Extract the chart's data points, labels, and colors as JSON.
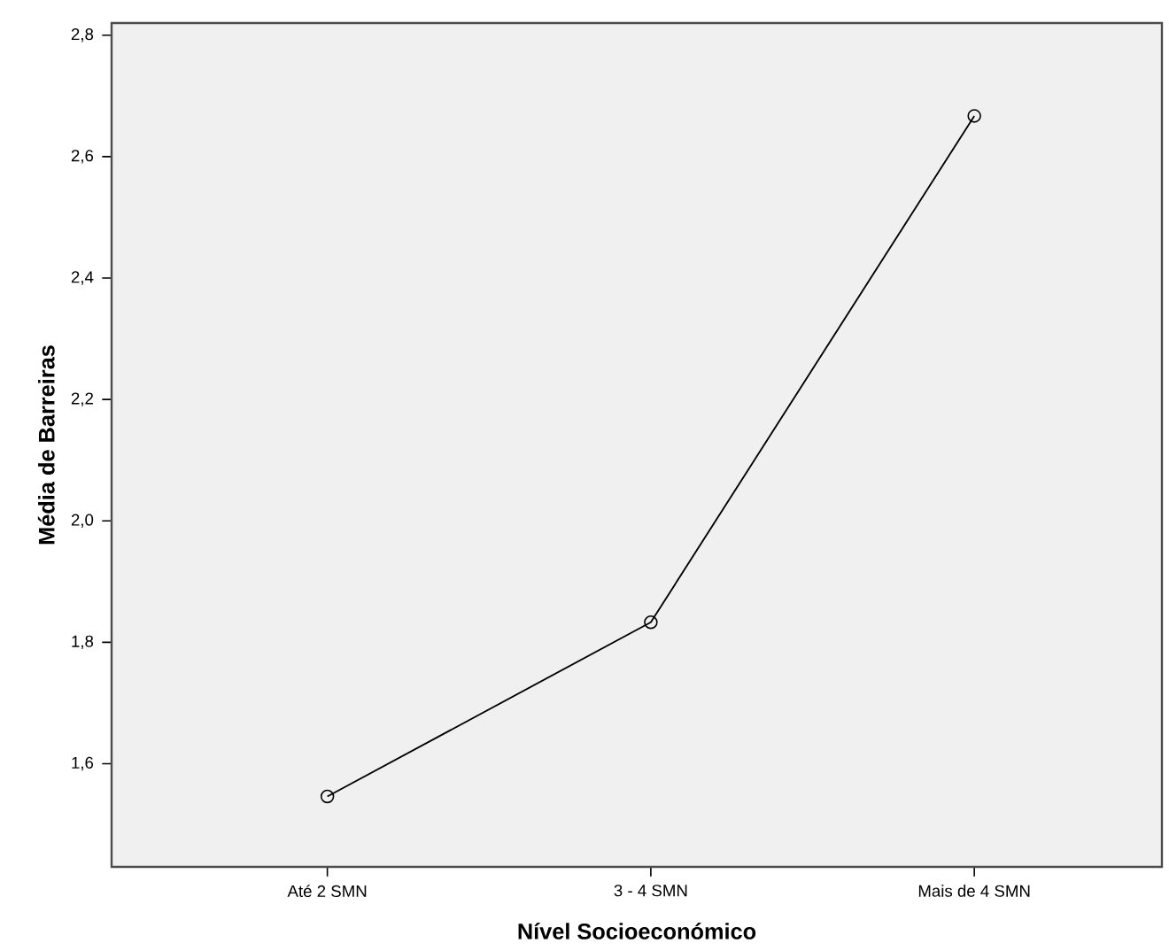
{
  "chart_data": {
    "type": "line",
    "xlabel": "Nível Socioeconómico",
    "ylabel": "Média de Barreiras",
    "categories": [
      "Até 2 SMN",
      "3 - 4 SMN",
      "Mais de 4 SMN"
    ],
    "values": [
      1.546,
      1.833,
      2.667
    ],
    "color": "#000000",
    "ylim": [
      1.43,
      2.82
    ],
    "yticks": [
      {
        "value": 1.6,
        "label": "1,6"
      },
      {
        "value": 1.8,
        "label": "1,8"
      },
      {
        "value": 2.0,
        "label": "2,0"
      },
      {
        "value": 2.2,
        "label": "2,2"
      },
      {
        "value": 2.4,
        "label": "2,4"
      },
      {
        "value": 2.6,
        "label": "2,6"
      },
      {
        "value": 2.8,
        "label": "2,8"
      }
    ],
    "marker": "circle",
    "line_style": "solid"
  }
}
